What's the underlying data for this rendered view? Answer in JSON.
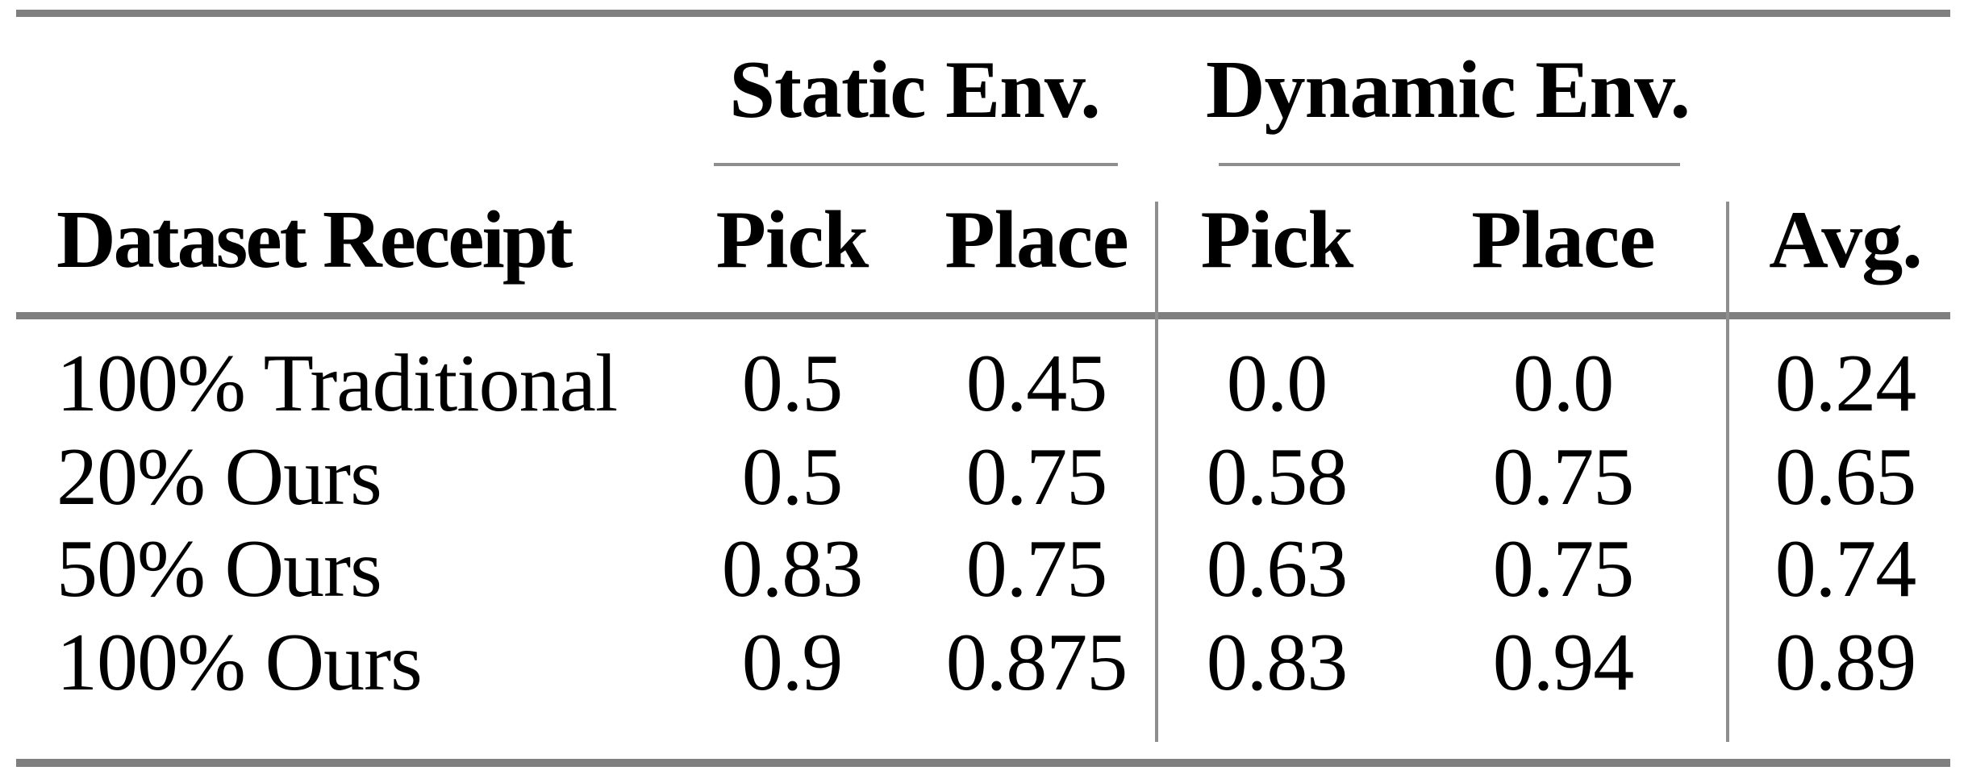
{
  "figure": {
    "group_headers": [
      {
        "label": "Static Env."
      },
      {
        "label": "Dynamic Env."
      }
    ],
    "column_headers": {
      "row_label": "Dataset Receipt",
      "static_pick": "Pick",
      "static_place": "Place",
      "dynamic_pick": "Pick",
      "dynamic_place": "Place",
      "avg": "Avg."
    },
    "rows": [
      {
        "label": "100% Traditional",
        "static_pick": "0.5",
        "static_place": "0.45",
        "dynamic_pick": "0.0",
        "dynamic_place": "0.0",
        "avg": "0.24"
      },
      {
        "label": "20% Ours",
        "static_pick": "0.5",
        "static_place": "0.75",
        "dynamic_pick": "0.58",
        "dynamic_place": "0.75",
        "avg": "0.65"
      },
      {
        "label": "50% Ours",
        "static_pick": "0.83",
        "static_place": "0.75",
        "dynamic_pick": "0.63",
        "dynamic_place": "0.75",
        "avg": "0.74"
      },
      {
        "label": "100% Ours",
        "static_pick": "0.9",
        "static_place": "0.875",
        "dynamic_pick": "0.83",
        "dynamic_place": "0.94",
        "avg": "0.89"
      }
    ]
  },
  "chart_data": {
    "type": "table",
    "columns": [
      "Dataset Receipt",
      "Static Env. Pick",
      "Static Env. Place",
      "Dynamic Env. Pick",
      "Dynamic Env. Place",
      "Avg."
    ],
    "rows": [
      [
        "100% Traditional",
        0.5,
        0.45,
        0.0,
        0.0,
        0.24
      ],
      [
        "20% Ours",
        0.5,
        0.75,
        0.58,
        0.75,
        0.65
      ],
      [
        "50% Ours",
        0.83,
        0.75,
        0.63,
        0.75,
        0.74
      ],
      [
        "100% Ours",
        0.9,
        0.875,
        0.83,
        0.94,
        0.89
      ]
    ]
  },
  "colors": {
    "rule_heavy": "#7f7f7f",
    "rule_light": "#8e8e8e",
    "text": "#000000",
    "background": "#ffffff"
  }
}
